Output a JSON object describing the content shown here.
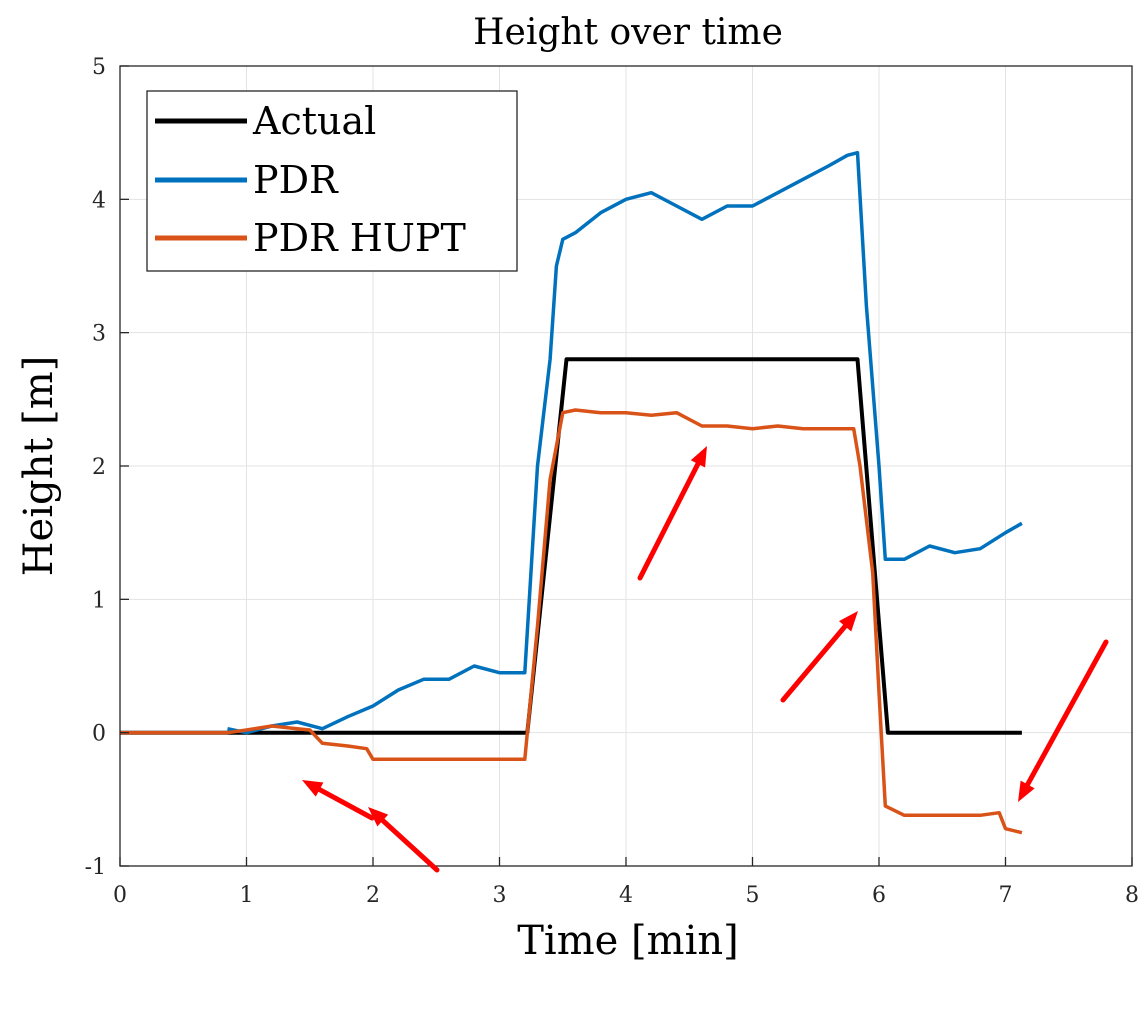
{
  "chart_data": {
    "type": "line",
    "title": "Height over time",
    "xlabel": "Time [min]",
    "ylabel": "Height [m]",
    "xlim": [
      0,
      8
    ],
    "ylim": [
      -1,
      5
    ],
    "xticks": [
      "0",
      "1",
      "2",
      "3",
      "4",
      "5",
      "6",
      "7",
      "8"
    ],
    "yticks": [
      "-1",
      "0",
      "1",
      "2",
      "3",
      "4",
      "5"
    ],
    "grid": true,
    "legend_position": "top-left",
    "series": [
      {
        "name": "Actual",
        "color": "#000000",
        "x": [
          0,
          1.0,
          1.5,
          2.0,
          2.5,
          3.0,
          3.22,
          3.53,
          4.0,
          4.5,
          5.0,
          5.5,
          5.83,
          6.07,
          6.5,
          7.13
        ],
        "y": [
          0,
          0,
          0,
          0,
          0,
          0,
          0,
          2.8,
          2.8,
          2.8,
          2.8,
          2.8,
          2.8,
          0,
          0,
          0
        ]
      },
      {
        "name": "PDR",
        "color": "#0072BD",
        "x": [
          0.85,
          1.0,
          1.2,
          1.4,
          1.6,
          1.8,
          2.0,
          2.2,
          2.4,
          2.6,
          2.8,
          3.0,
          3.2,
          3.3,
          3.4,
          3.45,
          3.5,
          3.6,
          3.8,
          4.0,
          4.2,
          4.4,
          4.6,
          4.8,
          5.0,
          5.2,
          5.4,
          5.6,
          5.75,
          5.83,
          5.9,
          6.0,
          6.05,
          6.2,
          6.4,
          6.6,
          6.8,
          7.0,
          7.13
        ],
        "y": [
          0.03,
          0.0,
          0.05,
          0.08,
          0.03,
          0.12,
          0.2,
          0.32,
          0.4,
          0.4,
          0.5,
          0.45,
          0.45,
          2.0,
          2.8,
          3.5,
          3.7,
          3.75,
          3.9,
          4.0,
          4.05,
          3.95,
          3.85,
          3.95,
          3.95,
          4.05,
          4.15,
          4.25,
          4.33,
          4.35,
          3.2,
          2.0,
          1.3,
          1.3,
          1.4,
          1.35,
          1.38,
          1.5,
          1.57
        ]
      },
      {
        "name": "PDR HUPT",
        "color": "#D95319",
        "x": [
          0,
          0.85,
          1.0,
          1.2,
          1.4,
          1.5,
          1.6,
          1.8,
          1.95,
          2.0,
          2.2,
          2.5,
          2.8,
          3.0,
          3.2,
          3.3,
          3.4,
          3.5,
          3.6,
          3.8,
          4.0,
          4.2,
          4.4,
          4.6,
          4.8,
          5.0,
          5.2,
          5.4,
          5.6,
          5.8,
          5.85,
          5.95,
          6.0,
          6.05,
          6.2,
          6.5,
          6.8,
          6.95,
          7.0,
          7.13
        ],
        "y": [
          0,
          0,
          0.02,
          0.05,
          0.03,
          0.02,
          -0.08,
          -0.1,
          -0.12,
          -0.2,
          -0.2,
          -0.2,
          -0.2,
          -0.2,
          -0.2,
          0.8,
          1.9,
          2.4,
          2.42,
          2.4,
          2.4,
          2.38,
          2.4,
          2.3,
          2.3,
          2.28,
          2.3,
          2.28,
          2.28,
          2.28,
          2.0,
          1.2,
          0.3,
          -0.55,
          -0.62,
          -0.62,
          -0.62,
          -0.6,
          -0.72,
          -0.75
        ]
      }
    ]
  },
  "annotations": {
    "arrow_color": "#FF0000"
  }
}
